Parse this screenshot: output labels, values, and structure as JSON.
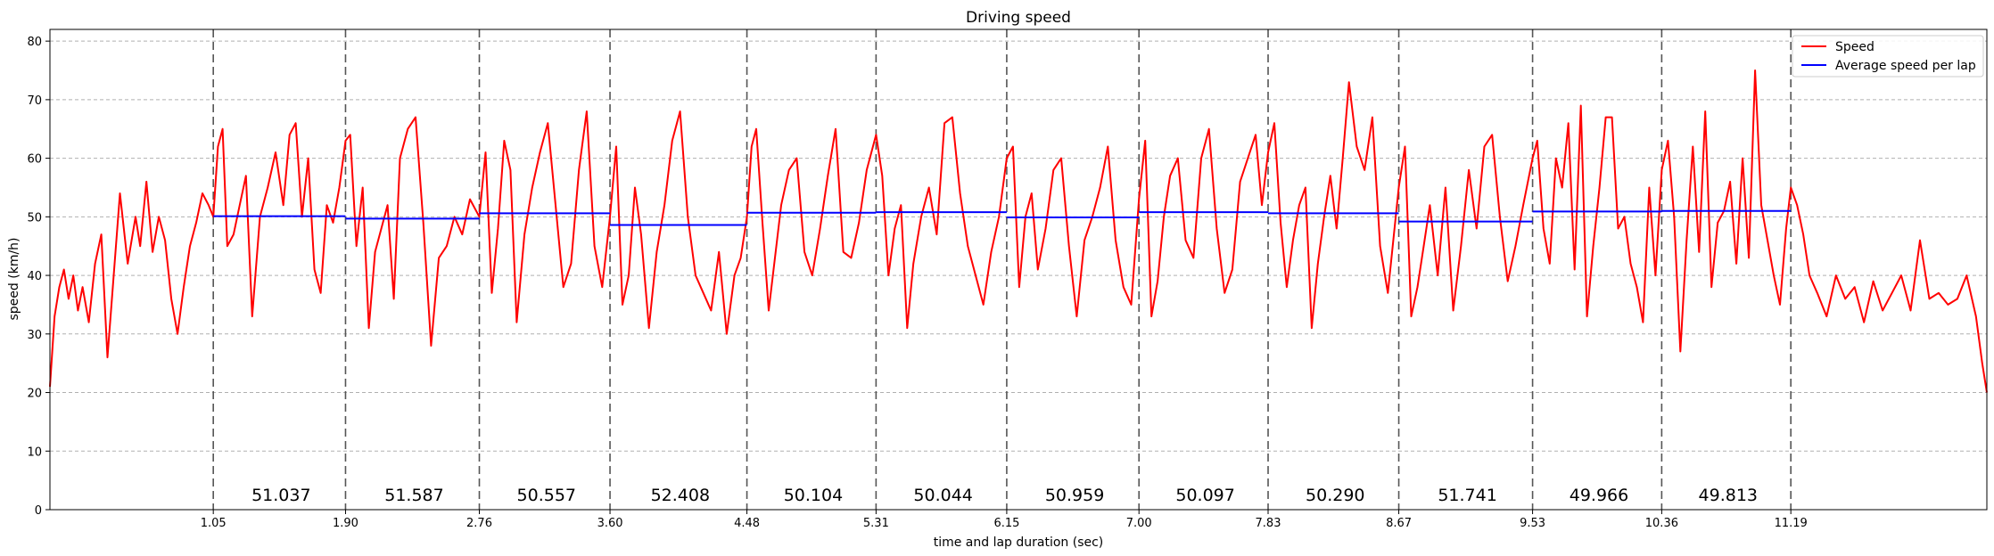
{
  "chart_data": {
    "type": "line",
    "title": "Driving speed",
    "xlabel": "time and lap duration (sec)",
    "ylabel": "speed (km/h)",
    "xlim": [
      0,
      12.45
    ],
    "ylim": [
      0,
      82
    ],
    "y_ticks": [
      0,
      10,
      20,
      30,
      40,
      50,
      60,
      70,
      80
    ],
    "grid": "horizontal dashed",
    "legend_position": "top-right",
    "lap_boundaries": [
      1.05,
      1.9,
      2.76,
      3.6,
      4.48,
      5.31,
      6.15,
      7.0,
      7.83,
      8.67,
      9.53,
      10.36,
      11.19
    ],
    "x_tick_labels": [
      "1.05",
      "1.90",
      "2.76",
      "3.60",
      "4.48",
      "5.31",
      "6.15",
      "7.00",
      "7.83",
      "8.67",
      "9.53",
      "10.36",
      "11.19"
    ],
    "lap_durations": [
      "51.037",
      "51.587",
      "50.557",
      "52.408",
      "50.104",
      "50.044",
      "50.959",
      "50.097",
      "50.290",
      "51.741",
      "49.966",
      "49.813"
    ],
    "series": [
      {
        "name": "Speed",
        "color": "#ff0000",
        "x": [
          0.0,
          0.03,
          0.06,
          0.09,
          0.12,
          0.15,
          0.18,
          0.21,
          0.25,
          0.29,
          0.33,
          0.37,
          0.41,
          0.45,
          0.5,
          0.55,
          0.58,
          0.62,
          0.66,
          0.7,
          0.74,
          0.78,
          0.82,
          0.86,
          0.9,
          0.94,
          0.98,
          1.02,
          1.05,
          1.08,
          1.11,
          1.14,
          1.18,
          1.22,
          1.26,
          1.3,
          1.35,
          1.4,
          1.45,
          1.5,
          1.54,
          1.58,
          1.62,
          1.66,
          1.7,
          1.74,
          1.78,
          1.82,
          1.86,
          1.9,
          1.93,
          1.97,
          2.01,
          2.05,
          2.09,
          2.13,
          2.17,
          2.21,
          2.25,
          2.3,
          2.35,
          2.4,
          2.45,
          2.5,
          2.55,
          2.6,
          2.65,
          2.7,
          2.76,
          2.8,
          2.84,
          2.88,
          2.92,
          2.96,
          3.0,
          3.05,
          3.1,
          3.15,
          3.2,
          3.25,
          3.3,
          3.35,
          3.4,
          3.45,
          3.5,
          3.55,
          3.6,
          3.64,
          3.68,
          3.72,
          3.76,
          3.8,
          3.85,
          3.9,
          3.95,
          4.0,
          4.05,
          4.1,
          4.15,
          4.2,
          4.25,
          4.3,
          4.35,
          4.4,
          4.44,
          4.48,
          4.51,
          4.54,
          4.58,
          4.62,
          4.66,
          4.7,
          4.75,
          4.8,
          4.85,
          4.9,
          4.95,
          5.0,
          5.05,
          5.1,
          5.15,
          5.2,
          5.25,
          5.31,
          5.35,
          5.39,
          5.43,
          5.47,
          5.51,
          5.55,
          5.6,
          5.65,
          5.7,
          5.75,
          5.8,
          5.85,
          5.9,
          5.95,
          6.0,
          6.05,
          6.1,
          6.15,
          6.19,
          6.23,
          6.27,
          6.31,
          6.35,
          6.4,
          6.45,
          6.5,
          6.55,
          6.6,
          6.65,
          6.7,
          6.75,
          6.8,
          6.85,
          6.9,
          6.95,
          7.0,
          7.04,
          7.08,
          7.12,
          7.16,
          7.2,
          7.25,
          7.3,
          7.35,
          7.4,
          7.45,
          7.5,
          7.55,
          7.6,
          7.65,
          7.7,
          7.75,
          7.79,
          7.83,
          7.87,
          7.91,
          7.95,
          7.99,
          8.03,
          8.07,
          8.11,
          8.15,
          8.19,
          8.23,
          8.27,
          8.31,
          8.35,
          8.4,
          8.45,
          8.5,
          8.55,
          8.6,
          8.67,
          8.71,
          8.75,
          8.79,
          8.83,
          8.87,
          8.92,
          8.97,
          9.02,
          9.07,
          9.12,
          9.17,
          9.22,
          9.27,
          9.32,
          9.37,
          9.42,
          9.47,
          9.53,
          9.56,
          9.6,
          9.64,
          9.68,
          9.72,
          9.76,
          9.8,
          9.84,
          9.88,
          9.92,
          9.96,
          10.0,
          10.04,
          10.08,
          10.12,
          10.16,
          10.2,
          10.24,
          10.28,
          10.32,
          10.36,
          10.4,
          10.44,
          10.48,
          10.52,
          10.56,
          10.6,
          10.64,
          10.68,
          10.72,
          10.76,
          10.8,
          10.84,
          10.88,
          10.92,
          10.96,
          11.0,
          11.04,
          11.08,
          11.12,
          11.16,
          11.19,
          11.23,
          11.27,
          11.31,
          11.36,
          11.42,
          11.48,
          11.54,
          11.6,
          11.66,
          11.72,
          11.78,
          11.84,
          11.9,
          11.96,
          12.02,
          12.08,
          12.14,
          12.2,
          12.26,
          12.32,
          12.38,
          12.42,
          12.45
        ],
        "y": [
          21,
          33,
          38,
          41,
          36,
          40,
          34,
          38,
          32,
          42,
          47,
          26,
          40,
          54,
          42,
          50,
          45,
          56,
          44,
          50,
          46,
          36,
          30,
          38,
          45,
          49,
          54,
          52,
          50,
          62,
          65,
          45,
          47,
          52,
          57,
          33,
          50,
          55,
          61,
          52,
          64,
          66,
          50,
          60,
          41,
          37,
          52,
          49,
          55,
          63,
          64,
          45,
          55,
          31,
          44,
          48,
          52,
          36,
          60,
          65,
          67,
          49,
          28,
          43,
          45,
          50,
          47,
          53,
          50,
          61,
          37,
          48,
          63,
          58,
          32,
          47,
          55,
          61,
          66,
          52,
          38,
          42,
          58,
          68,
          45,
          38,
          50,
          62,
          35,
          40,
          55,
          47,
          31,
          44,
          52,
          63,
          68,
          50,
          40,
          37,
          34,
          44,
          30,
          40,
          43,
          50,
          62,
          65,
          49,
          34,
          43,
          52,
          58,
          60,
          44,
          40,
          48,
          57,
          65,
          44,
          43,
          49,
          58,
          64,
          57,
          40,
          48,
          52,
          31,
          42,
          50,
          55,
          47,
          66,
          67,
          54,
          45,
          40,
          35,
          44,
          50,
          60,
          62,
          38,
          50,
          54,
          41,
          48,
          58,
          60,
          45,
          33,
          46,
          50,
          55,
          62,
          46,
          38,
          35,
          53,
          63,
          33,
          39,
          50,
          57,
          60,
          46,
          43,
          60,
          65,
          48,
          37,
          41,
          56,
          60,
          64,
          52,
          61,
          66,
          49,
          38,
          46,
          52,
          55,
          31,
          42,
          50,
          57,
          48,
          60,
          73,
          62,
          58,
          67,
          45,
          37,
          55,
          62,
          33,
          38,
          45,
          52,
          40,
          55,
          34,
          45,
          58,
          48,
          62,
          64,
          50,
          39,
          45,
          52,
          60,
          63,
          48,
          42,
          60,
          55,
          66,
          41,
          69,
          33,
          45,
          55,
          67,
          67,
          48,
          50,
          42,
          38,
          32,
          55,
          40,
          58,
          63,
          50,
          27,
          46,
          62,
          44,
          68,
          38,
          49,
          51,
          56,
          42,
          60,
          43,
          75,
          52,
          46,
          40,
          35,
          48,
          55,
          52,
          47,
          40,
          37,
          33,
          40,
          36,
          38,
          32,
          39,
          34,
          37,
          40,
          34,
          46,
          36,
          37,
          35,
          36,
          40,
          33,
          25,
          20
        ]
      },
      {
        "name": "Average speed per lap",
        "color": "#0000ff",
        "steps": [
          {
            "x0": 1.05,
            "x1": 1.9,
            "y": 50.1
          },
          {
            "x0": 1.9,
            "x1": 2.76,
            "y": 49.7
          },
          {
            "x0": 2.76,
            "x1": 3.6,
            "y": 50.6
          },
          {
            "x0": 3.6,
            "x1": 4.48,
            "y": 48.6
          },
          {
            "x0": 4.48,
            "x1": 5.31,
            "y": 50.7
          },
          {
            "x0": 5.31,
            "x1": 6.15,
            "y": 50.8
          },
          {
            "x0": 6.15,
            "x1": 7.0,
            "y": 49.9
          },
          {
            "x0": 7.0,
            "x1": 7.83,
            "y": 50.8
          },
          {
            "x0": 7.83,
            "x1": 8.67,
            "y": 50.6
          },
          {
            "x0": 8.67,
            "x1": 9.53,
            "y": 49.2
          },
          {
            "x0": 9.53,
            "x1": 10.36,
            "y": 50.9
          },
          {
            "x0": 10.36,
            "x1": 11.19,
            "y": 51.0
          }
        ]
      }
    ]
  }
}
